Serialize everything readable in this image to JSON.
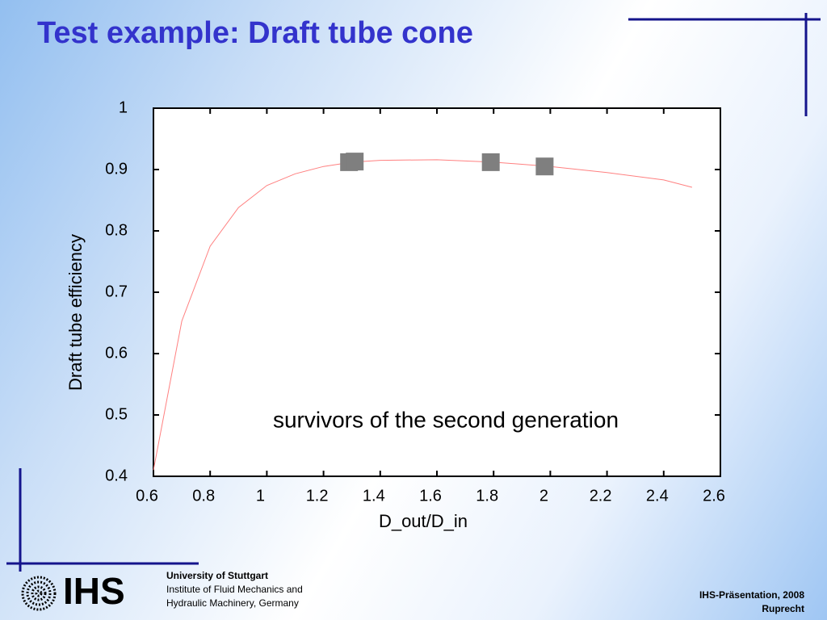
{
  "slide": {
    "title": "Test example: Draft tube cone",
    "logo": "IHS",
    "institution": [
      "University of Stuttgart",
      "Institute of Fluid Mechanics and",
      "Hydraulic Machinery, Germany"
    ],
    "footer": [
      "IHS-Präsentation, 2008",
      "Ruprecht"
    ]
  },
  "chart_data": {
    "type": "scatter",
    "x_label": "D_out/D_in",
    "y_label": "Draft tube efficiency",
    "annotation": "survivors of the second generation",
    "xlim": [
      0.6,
      2.6
    ],
    "xticks": [
      0.6,
      0.8,
      1,
      1.2,
      1.4,
      1.6,
      1.8,
      2,
      2.2,
      2.4,
      2.6
    ],
    "ylim": [
      0.4,
      1
    ],
    "yticks": [
      0.4,
      0.5,
      0.6,
      0.7,
      0.8,
      0.9,
      1
    ],
    "series": [
      {
        "mode": "line",
        "color": "#ff8080",
        "x": [
          0.6,
          0.7,
          0.8,
          0.9,
          1.0,
          1.1,
          1.2,
          1.3,
          1.4,
          1.6,
          1.8,
          2.0,
          2.2,
          2.4,
          2.5
        ],
        "values": [
          0.41,
          0.653,
          0.775,
          0.838,
          0.874,
          0.893,
          0.905,
          0.912,
          0.915,
          0.916,
          0.912,
          0.905,
          0.895,
          0.883,
          0.871
        ]
      },
      {
        "mode": "markers",
        "color": "#7f7f7f",
        "x": [
          1.29,
          1.31,
          1.79,
          1.98
        ],
        "values": [
          0.912,
          0.913,
          0.912,
          0.905
        ]
      }
    ]
  }
}
